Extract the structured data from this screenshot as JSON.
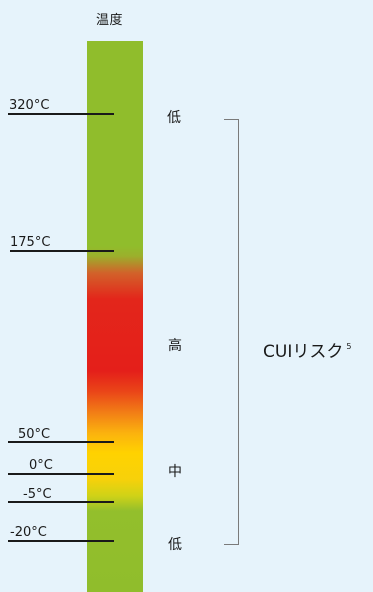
{
  "title": "温度",
  "temperature_marks": [
    {
      "label": "320°C"
    },
    {
      "label": "175°C"
    },
    {
      "label": "50°C"
    },
    {
      "label": "0°C"
    },
    {
      "label": "-5°C"
    },
    {
      "label": "-20°C"
    }
  ],
  "risk_levels": {
    "low_top": "低",
    "high": "高",
    "medium": "中",
    "low_bottom": "低"
  },
  "risk_label": {
    "text": "CUIリスク",
    "footnote": "5"
  },
  "colors": {
    "background": "#e6f3fb",
    "low_risk": "#90bd2c",
    "high_risk": "#e41f1a",
    "medium_risk": "#ffd200"
  }
}
